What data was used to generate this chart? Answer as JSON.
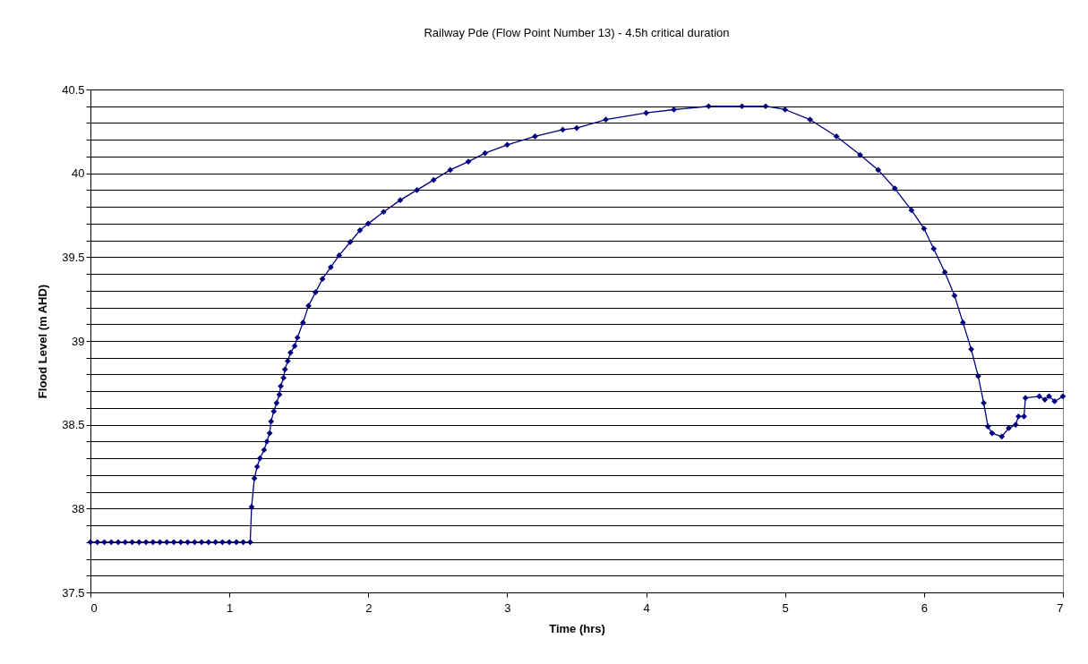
{
  "chart_data": {
    "type": "line",
    "title": "Railway Pde (Flow Point Number 13) - 4.5h critical duration",
    "xlabel": "Time (hrs)",
    "ylabel": "Flood Level (m AHD)",
    "x": [
      0,
      0.05,
      0.1,
      0.15,
      0.2,
      0.25,
      0.3,
      0.35,
      0.4,
      0.45,
      0.5,
      0.55,
      0.6,
      0.65,
      0.7,
      0.75,
      0.8,
      0.85,
      0.9,
      0.95,
      1.0,
      1.05,
      1.1,
      1.15,
      1.16,
      1.18,
      1.2,
      1.22,
      1.25,
      1.27,
      1.29,
      1.3,
      1.32,
      1.34,
      1.36,
      1.37,
      1.39,
      1.4,
      1.42,
      1.44,
      1.47,
      1.49,
      1.53,
      1.57,
      1.62,
      1.67,
      1.73,
      1.79,
      1.87,
      1.94,
      2.0,
      2.11,
      2.23,
      2.35,
      2.47,
      2.59,
      2.72,
      2.84,
      3.0,
      3.2,
      3.4,
      3.5,
      3.71,
      4.0,
      4.2,
      4.45,
      4.69,
      4.86,
      5.0,
      5.18,
      5.37,
      5.54,
      5.67,
      5.79,
      5.91,
      6.0,
      6.07,
      6.15,
      6.22,
      6.28,
      6.34,
      6.39,
      6.43,
      6.46,
      6.49,
      6.56,
      6.61,
      6.66,
      6.68,
      6.72,
      6.73,
      6.83,
      6.87,
      6.9,
      6.94,
      7.0
    ],
    "series": [
      {
        "color": "#000080",
        "values": [
          37.8,
          37.8,
          37.8,
          37.8,
          37.8,
          37.8,
          37.8,
          37.8,
          37.8,
          37.8,
          37.8,
          37.8,
          37.8,
          37.8,
          37.8,
          37.8,
          37.8,
          37.8,
          37.8,
          37.8,
          37.8,
          37.8,
          37.8,
          37.8,
          38.01,
          38.18,
          38.25,
          38.3,
          38.35,
          38.4,
          38.45,
          38.52,
          38.58,
          38.63,
          38.68,
          38.73,
          38.78,
          38.83,
          38.88,
          38.93,
          38.97,
          39.02,
          39.11,
          39.21,
          39.29,
          39.37,
          39.44,
          39.51,
          39.59,
          39.66,
          39.7,
          39.77,
          39.84,
          39.9,
          39.96,
          40.02,
          40.07,
          40.12,
          40.17,
          40.22,
          40.26,
          40.27,
          40.32,
          40.36,
          40.38,
          40.4,
          40.4,
          40.4,
          40.38,
          40.32,
          40.22,
          40.11,
          40.02,
          39.91,
          39.78,
          39.67,
          39.55,
          39.41,
          39.27,
          39.11,
          38.95,
          38.79,
          38.63,
          38.49,
          38.45,
          38.43,
          38.48,
          38.5,
          38.55,
          38.55,
          38.66,
          38.67,
          38.65,
          38.67,
          38.64,
          38.67
        ]
      }
    ],
    "xlim": [
      0,
      7
    ],
    "xticks": [
      0,
      1,
      2,
      3,
      4,
      5,
      6,
      7
    ],
    "ylim": [
      37.5,
      40.5
    ],
    "yticks": [
      37.5,
      {
        "value": 37.6,
        "label": null
      },
      {
        "value": 37.7,
        "label": null
      },
      {
        "value": 37.8,
        "label": null
      },
      {
        "value": 37.9,
        "label": null
      },
      38,
      {
        "value": 38.1,
        "label": null
      },
      {
        "value": 38.2,
        "label": null
      },
      {
        "value": 38.3,
        "label": null
      },
      {
        "value": 38.4,
        "label": null
      },
      38.5,
      {
        "value": 38.6,
        "label": null
      },
      {
        "value": 38.7,
        "label": null
      },
      {
        "value": 38.8,
        "label": null
      },
      {
        "value": 38.9,
        "label": null
      },
      39,
      {
        "value": 39.1,
        "label": null
      },
      {
        "value": 39.2,
        "label": null
      },
      {
        "value": 39.3,
        "label": null
      },
      {
        "value": 39.4,
        "label": null
      },
      39.5,
      {
        "value": 39.6,
        "label": null
      },
      {
        "value": 39.7,
        "label": null
      },
      {
        "value": 39.8,
        "label": null
      },
      {
        "value": 39.9,
        "label": null
      },
      40,
      {
        "value": 40.1,
        "label": null
      },
      {
        "value": 40.2,
        "label": null
      },
      {
        "value": 40.3,
        "label": null
      },
      {
        "value": 40.4,
        "label": null
      },
      40.5
    ],
    "grid": "y",
    "marker": "diamond",
    "line_style": "solid",
    "legend": false
  }
}
